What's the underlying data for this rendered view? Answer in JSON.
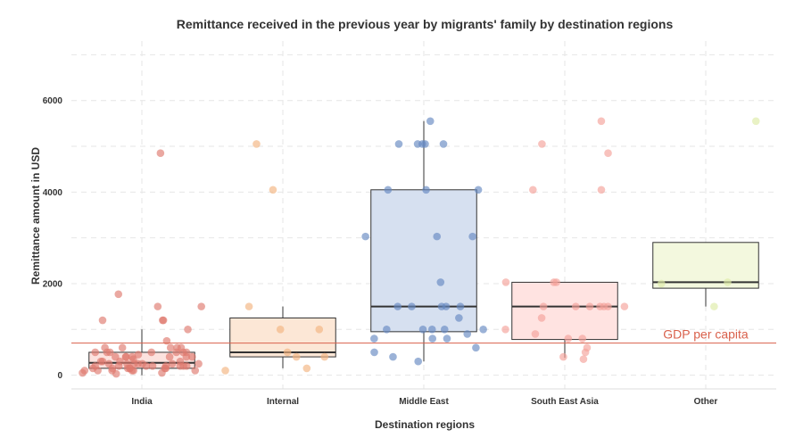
{
  "chart_data": {
    "type": "box-jitter",
    "title": "Remittance received in the previous year by migrants' family by destination regions",
    "xlabel": "Destination regions",
    "ylabel": "Remittance amount in USD",
    "ylim": [
      -300,
      7300
    ],
    "yticks": [
      0,
      2000,
      4000,
      6000
    ],
    "grid": true,
    "categories": [
      "India",
      "Internal",
      "Middle East",
      "South East Asia",
      "Other"
    ],
    "colors": [
      "#DE7A6F",
      "#F2B380",
      "#6688C2",
      "#F5A29A",
      "#DDEBA6"
    ],
    "box_fills": [
      "#FCE2DE",
      "#FCE7D6",
      "#D6E0F0",
      "#FFE3E1",
      "#F3F8DE"
    ],
    "boxes": [
      {
        "q1": 150,
        "median": 270,
        "q3": 500,
        "whisker_low": 0,
        "whisker_high": 1000
      },
      {
        "q1": 400,
        "median": 500,
        "q3": 1250,
        "whisker_low": 150,
        "whisker_high": 1500
      },
      {
        "q1": 950,
        "median": 1500,
        "q3": 4050,
        "whisker_low": 300,
        "whisker_high": 5550
      },
      {
        "q1": 780,
        "median": 1500,
        "q3": 2030,
        "whisker_low": 380,
        "whisker_high": 2030
      },
      {
        "q1": 1900,
        "median": 2030,
        "q3": 2900,
        "whisker_low": 1500,
        "whisker_high": 2900
      }
    ],
    "points": [
      [
        4850,
        1770,
        1500,
        1500,
        1200,
        1200,
        1200,
        1000,
        750,
        600,
        600,
        600,
        600,
        600,
        500,
        500,
        500,
        500,
        500,
        500,
        500,
        450,
        400,
        400,
        400,
        400,
        400,
        400,
        400,
        350,
        300,
        300,
        300,
        300,
        250,
        250,
        250,
        250,
        250,
        250,
        250,
        200,
        200,
        200,
        200,
        200,
        200,
        200,
        200,
        150,
        150,
        150,
        150,
        150,
        150,
        150,
        100,
        100,
        100,
        100,
        100,
        100,
        50,
        50,
        30
      ],
      [
        5050,
        4050,
        1500,
        1000,
        1000,
        500,
        400,
        400,
        150,
        100
      ],
      [
        5550,
        5050,
        5050,
        5050,
        5050,
        5050,
        4050,
        4050,
        4050,
        3030,
        3030,
        3030,
        2030,
        1500,
        1500,
        1500,
        1500,
        1500,
        1250,
        1000,
        1000,
        1000,
        1000,
        1000,
        900,
        800,
        800,
        800,
        600,
        500,
        400,
        300
      ],
      [
        5550,
        5050,
        4850,
        4050,
        4050,
        2030,
        2030,
        2030,
        1500,
        1500,
        1500,
        1500,
        1500,
        1500,
        1500,
        1250,
        1000,
        900,
        800,
        800,
        600,
        500,
        400,
        350
      ],
      [
        5550,
        2030,
        2000,
        1500
      ]
    ],
    "reference_line": {
      "value": 700,
      "label": "GDP per capita",
      "color": "#D9614C"
    }
  }
}
